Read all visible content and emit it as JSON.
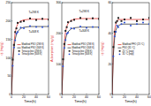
{
  "chart_data": [
    {
      "type": "line",
      "x_label": "Time(h)",
      "y_label": "qt (mg/g)",
      "x": [
        0,
        2,
        4,
        6,
        8,
        10,
        15,
        20,
        30,
        40,
        50,
        60
      ],
      "xlim": [
        0,
        60
      ],
      "xticks": [
        0,
        20,
        40,
        60
      ],
      "ylim": [
        0,
        250
      ],
      "yticks": [
        0,
        50,
        100,
        150,
        200,
        250
      ],
      "grid": false,
      "legend": "right",
      "annotations": [
        {
          "text": "T=298 K",
          "x": 36,
          "y": 222
        },
        {
          "text": "T=308 K",
          "x": 36,
          "y": 168
        }
      ],
      "series": [
        {
          "name": "Modified PSO (298 K)",
          "type": "line",
          "color": "#e0201b",
          "line_style": "solid",
          "values": [
            0,
            90,
            140,
            168,
            183,
            192,
            200,
            203,
            205,
            205,
            205,
            205
          ]
        },
        {
          "name": "Modified PSO (308 K)",
          "type": "line",
          "color": "#222222",
          "line_style": "solid",
          "values": [
            0,
            80,
            125,
            150,
            164,
            172,
            180,
            183,
            185,
            185,
            185,
            185
          ]
        },
        {
          "name": "Tetracycline (298 K)",
          "type": "scatter",
          "color": "#222222",
          "marker": "square",
          "values": [
            null,
            95,
            135,
            170,
            180,
            195,
            198,
            200,
            207,
            203,
            206,
            204
          ]
        },
        {
          "name": "Tetracycline (308 K)",
          "type": "scatter",
          "color": "#2a4fd6",
          "marker": "circle",
          "values": [
            null,
            78,
            128,
            148,
            166,
            170,
            182,
            180,
            186,
            184,
            183,
            186
          ]
        }
      ]
    },
    {
      "type": "line",
      "x_label": "Time(h)",
      "y_label": "Adsorption (mg/g)",
      "x": [
        0,
        2,
        4,
        6,
        8,
        10,
        15,
        20,
        30,
        40,
        50,
        60
      ],
      "xlim": [
        0,
        60
      ],
      "xticks": [
        0,
        20,
        40,
        60
      ],
      "ylim": [
        0,
        300
      ],
      "yticks": [
        0,
        100,
        200,
        300
      ],
      "grid": false,
      "legend": "right",
      "annotations": [
        {
          "text": "T=298 K",
          "x": 36,
          "y": 268
        },
        {
          "text": "T=308 K",
          "x": 36,
          "y": 206
        }
      ],
      "series": [
        {
          "name": "Modified PSO (298 K)",
          "type": "line",
          "color": "#e0201b",
          "line_style": "solid",
          "values": [
            0,
            110,
            170,
            205,
            222,
            232,
            242,
            246,
            248,
            248,
            248,
            248
          ]
        },
        {
          "name": "Modified PSO (308 K)",
          "type": "line",
          "color": "#222222",
          "line_style": "solid",
          "values": [
            0,
            95,
            150,
            180,
            196,
            205,
            214,
            218,
            220,
            220,
            220,
            220
          ]
        },
        {
          "name": "Tetracycline (298 K)",
          "type": "scatter",
          "color": "#222222",
          "marker": "square",
          "values": [
            null,
            115,
            165,
            208,
            220,
            236,
            240,
            244,
            250,
            246,
            249,
            247
          ]
        },
        {
          "name": "Tetracycline (308 K)",
          "type": "scatter",
          "color": "#2a4fd6",
          "marker": "circle",
          "values": [
            null,
            92,
            152,
            178,
            198,
            202,
            216,
            215,
            222,
            218,
            221,
            219
          ]
        }
      ]
    },
    {
      "type": "line",
      "x_label": "Time(h)",
      "y_label": "qt (mg/g)",
      "x": [
        0,
        2,
        4,
        6,
        8,
        10,
        15,
        20,
        30,
        40,
        50,
        60
      ],
      "xlim": [
        0,
        60
      ],
      "xticks": [
        0,
        20,
        40,
        60
      ],
      "ylim": [
        0,
        60
      ],
      "yticks": [
        0,
        20,
        40,
        60
      ],
      "grid": false,
      "legend": "right",
      "series": [
        {
          "name": "Modified PFO (25 °C)",
          "type": "line",
          "color": "#e0201b",
          "line_style": "solid",
          "values": [
            0,
            30,
            42,
            46,
            48,
            49,
            49,
            49,
            49,
            49,
            49,
            49
          ]
        },
        {
          "name": "PSO (35 °C)",
          "type": "line",
          "color": "#222222",
          "line_style": "solid",
          "values": [
            0,
            26,
            37,
            42,
            44,
            45,
            46,
            46,
            46,
            46,
            46,
            46
          ]
        },
        {
          "name": "25 °C (exp)",
          "type": "scatter",
          "color": "#222222",
          "marker": "square",
          "values": [
            null,
            31,
            41,
            47,
            48,
            50,
            48,
            49,
            50,
            48,
            49,
            50
          ]
        },
        {
          "name": "35 °C (exp)",
          "type": "scatter",
          "color": "#2a4fd6",
          "marker": "circle",
          "values": [
            null,
            25,
            38,
            41,
            45,
            44,
            46,
            47,
            45,
            46,
            47,
            46
          ]
        }
      ]
    }
  ]
}
